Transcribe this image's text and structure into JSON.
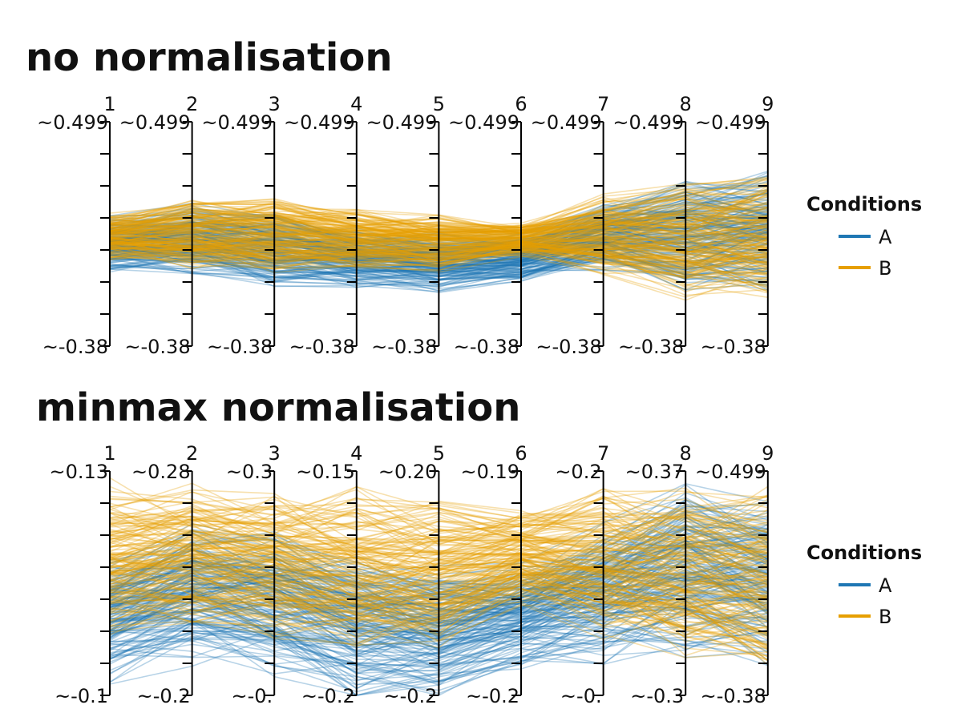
{
  "chart_data": [
    {
      "type": "line",
      "subtype": "parallel-coordinates",
      "title": "no normalisation",
      "axes": [
        "1",
        "2",
        "3",
        "4",
        "5",
        "6",
        "7",
        "8",
        "9"
      ],
      "axis_top_labels": [
        "~0.499",
        "~0.499",
        "~0.499",
        "~0.499",
        "~0.499",
        "~0.499",
        "~0.499",
        "~0.499",
        "~0.499"
      ],
      "axis_bottom_labels": [
        "~-0.38",
        "~-0.38",
        "~-0.38",
        "~-0.38",
        "~-0.38",
        "~-0.38",
        "~-0.38",
        "~-0.38",
        "~-0.38"
      ],
      "ylim": [
        -0.38,
        0.499
      ],
      "legend": {
        "title": "Conditions",
        "position": "right",
        "entries": [
          "A",
          "B"
        ]
      },
      "series": [
        {
          "name": "A",
          "color": "#1f77b4",
          "center": [
            0.02,
            0.04,
            0.0,
            -0.03,
            -0.05,
            -0.03,
            0.05,
            0.06,
            0.08
          ],
          "spread": [
            0.11,
            0.14,
            0.15,
            0.12,
            0.12,
            0.1,
            0.14,
            0.22,
            0.24
          ]
        },
        {
          "name": "B",
          "color": "#e69f00",
          "center": [
            0.05,
            0.06,
            0.06,
            0.04,
            0.03,
            0.04,
            0.06,
            0.04,
            0.05
          ],
          "spread": [
            0.1,
            0.15,
            0.16,
            0.12,
            0.12,
            0.07,
            0.16,
            0.24,
            0.26
          ]
        }
      ]
    },
    {
      "type": "line",
      "subtype": "parallel-coordinates",
      "title": "minmax normalisation",
      "axes": [
        "1",
        "2",
        "3",
        "4",
        "5",
        "6",
        "7",
        "8",
        "9"
      ],
      "axis_top_labels": [
        "~0.13",
        "~0.28",
        "~0.3",
        "~0.15",
        "~0.20",
        "~0.19",
        "~0.2",
        "~0.37",
        "~0.499"
      ],
      "axis_bottom_labels": [
        "~-0.1",
        "~-0.2",
        "~-0.",
        "~-0.2",
        "~-0.2",
        "~-0.2",
        "~-0.",
        "~-0.3",
        "~-0.38"
      ],
      "ylim": [
        0,
        1
      ],
      "legend": {
        "title": "Conditions",
        "position": "right",
        "entries": [
          "A",
          "B"
        ]
      },
      "series": [
        {
          "name": "A",
          "color": "#1f77b4",
          "center": [
            0.35,
            0.45,
            0.4,
            0.3,
            0.28,
            0.35,
            0.45,
            0.55,
            0.5
          ],
          "spread": [
            0.3,
            0.32,
            0.33,
            0.35,
            0.3,
            0.25,
            0.32,
            0.4,
            0.4
          ]
        },
        {
          "name": "B",
          "color": "#e69f00",
          "center": [
            0.62,
            0.62,
            0.6,
            0.55,
            0.55,
            0.62,
            0.6,
            0.55,
            0.52
          ],
          "spread": [
            0.35,
            0.33,
            0.35,
            0.38,
            0.35,
            0.22,
            0.35,
            0.4,
            0.42
          ]
        }
      ]
    }
  ]
}
